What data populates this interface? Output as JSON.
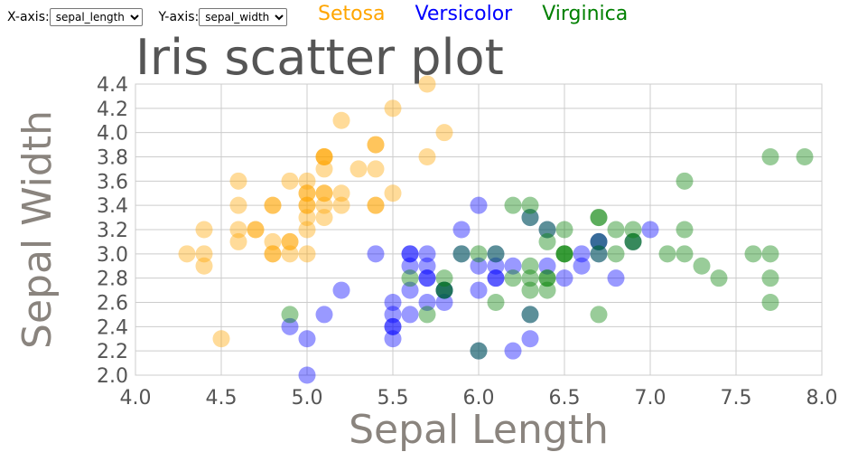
{
  "controls": {
    "x_label": "X-axis:",
    "x_selected": "sepal_length",
    "y_label": "Y-axis:",
    "y_selected": "sepal_width"
  },
  "colors": {
    "setosa": "orange",
    "versicolor": "blue",
    "virginica": "green"
  },
  "chart_data": {
    "type": "scatter",
    "title": "Iris scatter plot",
    "xlabel": "Sepal Length",
    "ylabel": "Sepal Width",
    "xlim": [
      4.0,
      8.0
    ],
    "ylim": [
      2.0,
      4.4
    ],
    "xticks": [
      "4.0",
      "4.5",
      "5.0",
      "5.5",
      "6.0",
      "6.5",
      "7.0",
      "7.5",
      "8.0"
    ],
    "yticks": [
      "2.0",
      "2.2",
      "2.4",
      "2.6",
      "2.8",
      "3.0",
      "3.2",
      "3.4",
      "3.6",
      "3.8",
      "4.0",
      "4.2",
      "4.4"
    ],
    "grid": true,
    "legend_placement": "top",
    "series": [
      {
        "name": "Setosa",
        "color": "#FFA500",
        "points": [
          [
            5.1,
            3.5
          ],
          [
            4.9,
            3.0
          ],
          [
            4.7,
            3.2
          ],
          [
            4.6,
            3.1
          ],
          [
            5.0,
            3.6
          ],
          [
            5.4,
            3.9
          ],
          [
            4.6,
            3.4
          ],
          [
            5.0,
            3.4
          ],
          [
            4.4,
            2.9
          ],
          [
            4.9,
            3.1
          ],
          [
            5.4,
            3.7
          ],
          [
            4.8,
            3.4
          ],
          [
            4.8,
            3.0
          ],
          [
            4.3,
            3.0
          ],
          [
            5.8,
            4.0
          ],
          [
            5.7,
            4.4
          ],
          [
            5.4,
            3.9
          ],
          [
            5.1,
            3.5
          ],
          [
            5.7,
            3.8
          ],
          [
            5.1,
            3.8
          ],
          [
            5.4,
            3.4
          ],
          [
            5.1,
            3.7
          ],
          [
            4.6,
            3.6
          ],
          [
            5.1,
            3.3
          ],
          [
            4.8,
            3.4
          ],
          [
            5.0,
            3.0
          ],
          [
            5.0,
            3.4
          ],
          [
            5.2,
            3.5
          ],
          [
            5.2,
            3.4
          ],
          [
            4.7,
            3.2
          ],
          [
            4.8,
            3.1
          ],
          [
            5.4,
            3.4
          ],
          [
            5.2,
            4.1
          ],
          [
            5.5,
            4.2
          ],
          [
            4.9,
            3.1
          ],
          [
            5.0,
            3.2
          ],
          [
            5.5,
            3.5
          ],
          [
            4.9,
            3.6
          ],
          [
            4.4,
            3.0
          ],
          [
            5.1,
            3.4
          ],
          [
            5.0,
            3.5
          ],
          [
            4.5,
            2.3
          ],
          [
            4.4,
            3.2
          ],
          [
            5.0,
            3.5
          ],
          [
            5.1,
            3.8
          ],
          [
            4.8,
            3.0
          ],
          [
            5.1,
            3.8
          ],
          [
            4.6,
            3.2
          ],
          [
            5.3,
            3.7
          ],
          [
            5.0,
            3.3
          ]
        ]
      },
      {
        "name": "Versicolor",
        "color": "#0000FF",
        "points": [
          [
            7.0,
            3.2
          ],
          [
            6.4,
            3.2
          ],
          [
            6.9,
            3.1
          ],
          [
            5.5,
            2.3
          ],
          [
            6.5,
            2.8
          ],
          [
            5.7,
            2.8
          ],
          [
            6.3,
            3.3
          ],
          [
            4.9,
            2.4
          ],
          [
            6.6,
            2.9
          ],
          [
            5.2,
            2.7
          ],
          [
            5.0,
            2.0
          ],
          [
            5.9,
            3.0
          ],
          [
            6.0,
            2.2
          ],
          [
            6.1,
            2.9
          ],
          [
            5.6,
            2.9
          ],
          [
            6.7,
            3.1
          ],
          [
            5.6,
            3.0
          ],
          [
            5.8,
            2.7
          ],
          [
            6.2,
            2.2
          ],
          [
            5.6,
            2.5
          ],
          [
            5.9,
            3.2
          ],
          [
            6.1,
            2.8
          ],
          [
            6.3,
            2.5
          ],
          [
            6.1,
            2.8
          ],
          [
            6.4,
            2.9
          ],
          [
            6.6,
            3.0
          ],
          [
            6.8,
            2.8
          ],
          [
            6.7,
            3.0
          ],
          [
            6.0,
            2.9
          ],
          [
            5.7,
            2.6
          ],
          [
            5.5,
            2.4
          ],
          [
            5.5,
            2.4
          ],
          [
            5.8,
            2.7
          ],
          [
            6.0,
            2.7
          ],
          [
            5.4,
            3.0
          ],
          [
            6.0,
            3.4
          ],
          [
            6.7,
            3.1
          ],
          [
            6.3,
            2.3
          ],
          [
            5.6,
            3.0
          ],
          [
            5.5,
            2.5
          ],
          [
            5.5,
            2.6
          ],
          [
            6.1,
            3.0
          ],
          [
            5.8,
            2.6
          ],
          [
            5.0,
            2.3
          ],
          [
            5.6,
            2.7
          ],
          [
            5.7,
            3.0
          ],
          [
            5.7,
            2.9
          ],
          [
            6.2,
            2.9
          ],
          [
            5.1,
            2.5
          ],
          [
            5.7,
            2.8
          ]
        ]
      },
      {
        "name": "Virginica",
        "color": "#008000",
        "points": [
          [
            6.3,
            3.3
          ],
          [
            5.8,
            2.7
          ],
          [
            7.1,
            3.0
          ],
          [
            6.3,
            2.9
          ],
          [
            6.5,
            3.0
          ],
          [
            7.6,
            3.0
          ],
          [
            4.9,
            2.5
          ],
          [
            7.3,
            2.9
          ],
          [
            6.7,
            2.5
          ],
          [
            7.2,
            3.6
          ],
          [
            6.5,
            3.2
          ],
          [
            6.4,
            2.7
          ],
          [
            6.8,
            3.0
          ],
          [
            5.7,
            2.5
          ],
          [
            5.8,
            2.8
          ],
          [
            6.4,
            3.2
          ],
          [
            6.5,
            3.0
          ],
          [
            7.7,
            3.8
          ],
          [
            7.7,
            2.6
          ],
          [
            6.0,
            2.2
          ],
          [
            6.9,
            3.2
          ],
          [
            5.6,
            2.8
          ],
          [
            7.7,
            2.8
          ],
          [
            6.3,
            2.7
          ],
          [
            6.7,
            3.3
          ],
          [
            7.2,
            3.2
          ],
          [
            6.2,
            2.8
          ],
          [
            6.1,
            3.0
          ],
          [
            6.4,
            2.8
          ],
          [
            7.2,
            3.0
          ],
          [
            7.4,
            2.8
          ],
          [
            7.9,
            3.8
          ],
          [
            6.4,
            2.8
          ],
          [
            6.3,
            2.8
          ],
          [
            6.1,
            2.6
          ],
          [
            7.7,
            3.0
          ],
          [
            6.3,
            3.4
          ],
          [
            6.4,
            3.1
          ],
          [
            6.0,
            3.0
          ],
          [
            6.9,
            3.1
          ],
          [
            6.7,
            3.1
          ],
          [
            6.9,
            3.1
          ],
          [
            5.8,
            2.7
          ],
          [
            6.8,
            3.2
          ],
          [
            6.7,
            3.3
          ],
          [
            6.7,
            3.0
          ],
          [
            6.3,
            2.5
          ],
          [
            6.5,
            3.0
          ],
          [
            6.2,
            3.4
          ],
          [
            5.9,
            3.0
          ]
        ]
      }
    ]
  }
}
